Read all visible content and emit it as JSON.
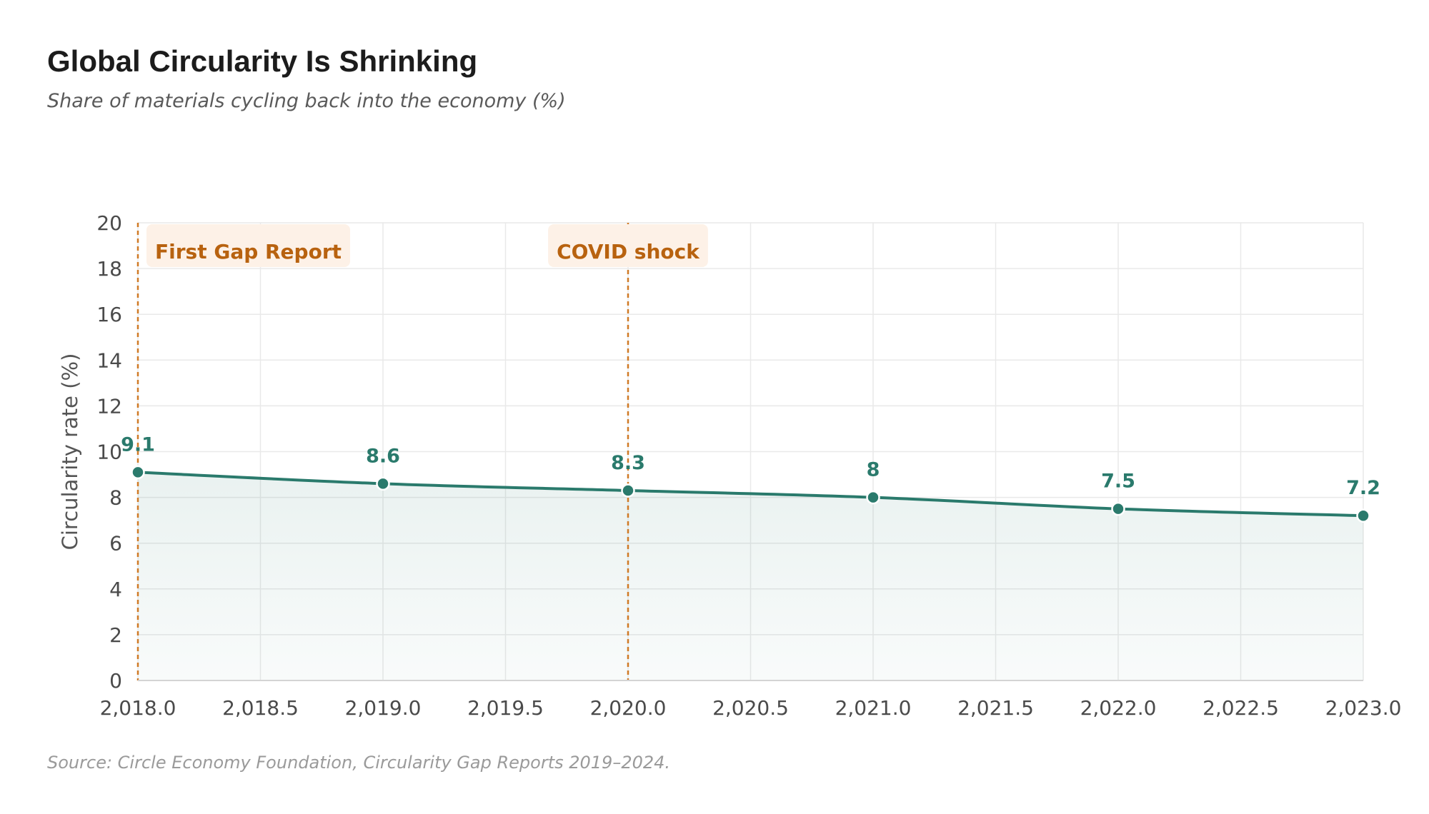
{
  "title": "Global Circularity Is Shrinking",
  "subtitle": "Share of materials cycling back into the economy (%)",
  "source": "Source: Circle Economy Foundation, Circularity Gap Reports 2019–2024.",
  "colors": {
    "line": "#2a7a6c",
    "annotation": "#d07a26",
    "annotation_text": "#b8620f",
    "annotation_bg": "#fdf1e7",
    "grid": "#e9e9e9"
  },
  "chart_data": {
    "type": "area",
    "title": "Global Circularity Is Shrinking",
    "subtitle": "Share of materials cycling back into the economy (%)",
    "xlabel": "",
    "ylabel": "Circularity rate (%)",
    "xlim": [
      2018,
      2023
    ],
    "ylim": [
      0,
      20
    ],
    "x_ticks": [
      2018.0,
      2018.5,
      2019.0,
      2019.5,
      2020.0,
      2020.5,
      2021.0,
      2021.5,
      2022.0,
      2022.5,
      2023.0
    ],
    "x_tick_labels": [
      "2,018.0",
      "2,018.5",
      "2,019.0",
      "2,019.5",
      "2,020.0",
      "2,020.5",
      "2,021.0",
      "2,021.5",
      "2,022.0",
      "2,022.5",
      "2,023.0"
    ],
    "y_ticks": [
      0,
      2,
      4,
      6,
      8,
      10,
      12,
      14,
      16,
      18,
      20
    ],
    "y_tick_labels": [
      "0",
      "2",
      "4",
      "6",
      "8",
      "10",
      "12",
      "14",
      "16",
      "18",
      "20"
    ],
    "grid": true,
    "legend": "none",
    "series": [
      {
        "x": [
          2018,
          2019,
          2020,
          2021,
          2022,
          2023
        ],
        "y": [
          9.1,
          8.6,
          8.3,
          8.0,
          7.5,
          7.2
        ],
        "data_labels": [
          "9.1",
          "8.6",
          "8.3",
          "8",
          "7.5",
          "7.2"
        ]
      }
    ],
    "annotations": [
      {
        "x": 2018,
        "label": "First Gap Report"
      },
      {
        "x": 2020,
        "label": "COVID shock"
      }
    ]
  }
}
